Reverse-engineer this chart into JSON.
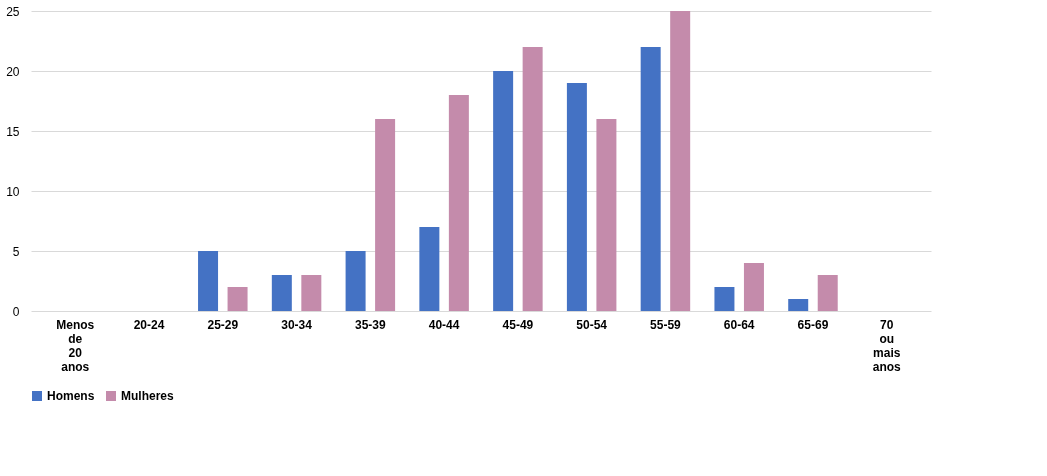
{
  "chart_data": {
    "type": "bar",
    "categories": [
      "Menos de 20 anos",
      "20-24",
      "25-29",
      "30-34",
      "35-39",
      "40-44",
      "45-49",
      "50-54",
      "55-59",
      "60-64",
      "65-69",
      "70 ou mais anos"
    ],
    "series": [
      {
        "name": "Homens",
        "color": "#4472c4",
        "values": [
          0,
          0,
          5,
          3,
          5,
          7,
          20,
          19,
          22,
          2,
          1,
          0
        ]
      },
      {
        "name": "Mulheres",
        "color": "#c48bab",
        "values": [
          0,
          0,
          2,
          3,
          16,
          18,
          22,
          16,
          25,
          4,
          3,
          0
        ]
      }
    ],
    "ylim": [
      0,
      25
    ],
    "yticks": [
      0,
      5,
      10,
      15,
      20,
      25
    ],
    "grid": "y",
    "legend": "bottom"
  }
}
